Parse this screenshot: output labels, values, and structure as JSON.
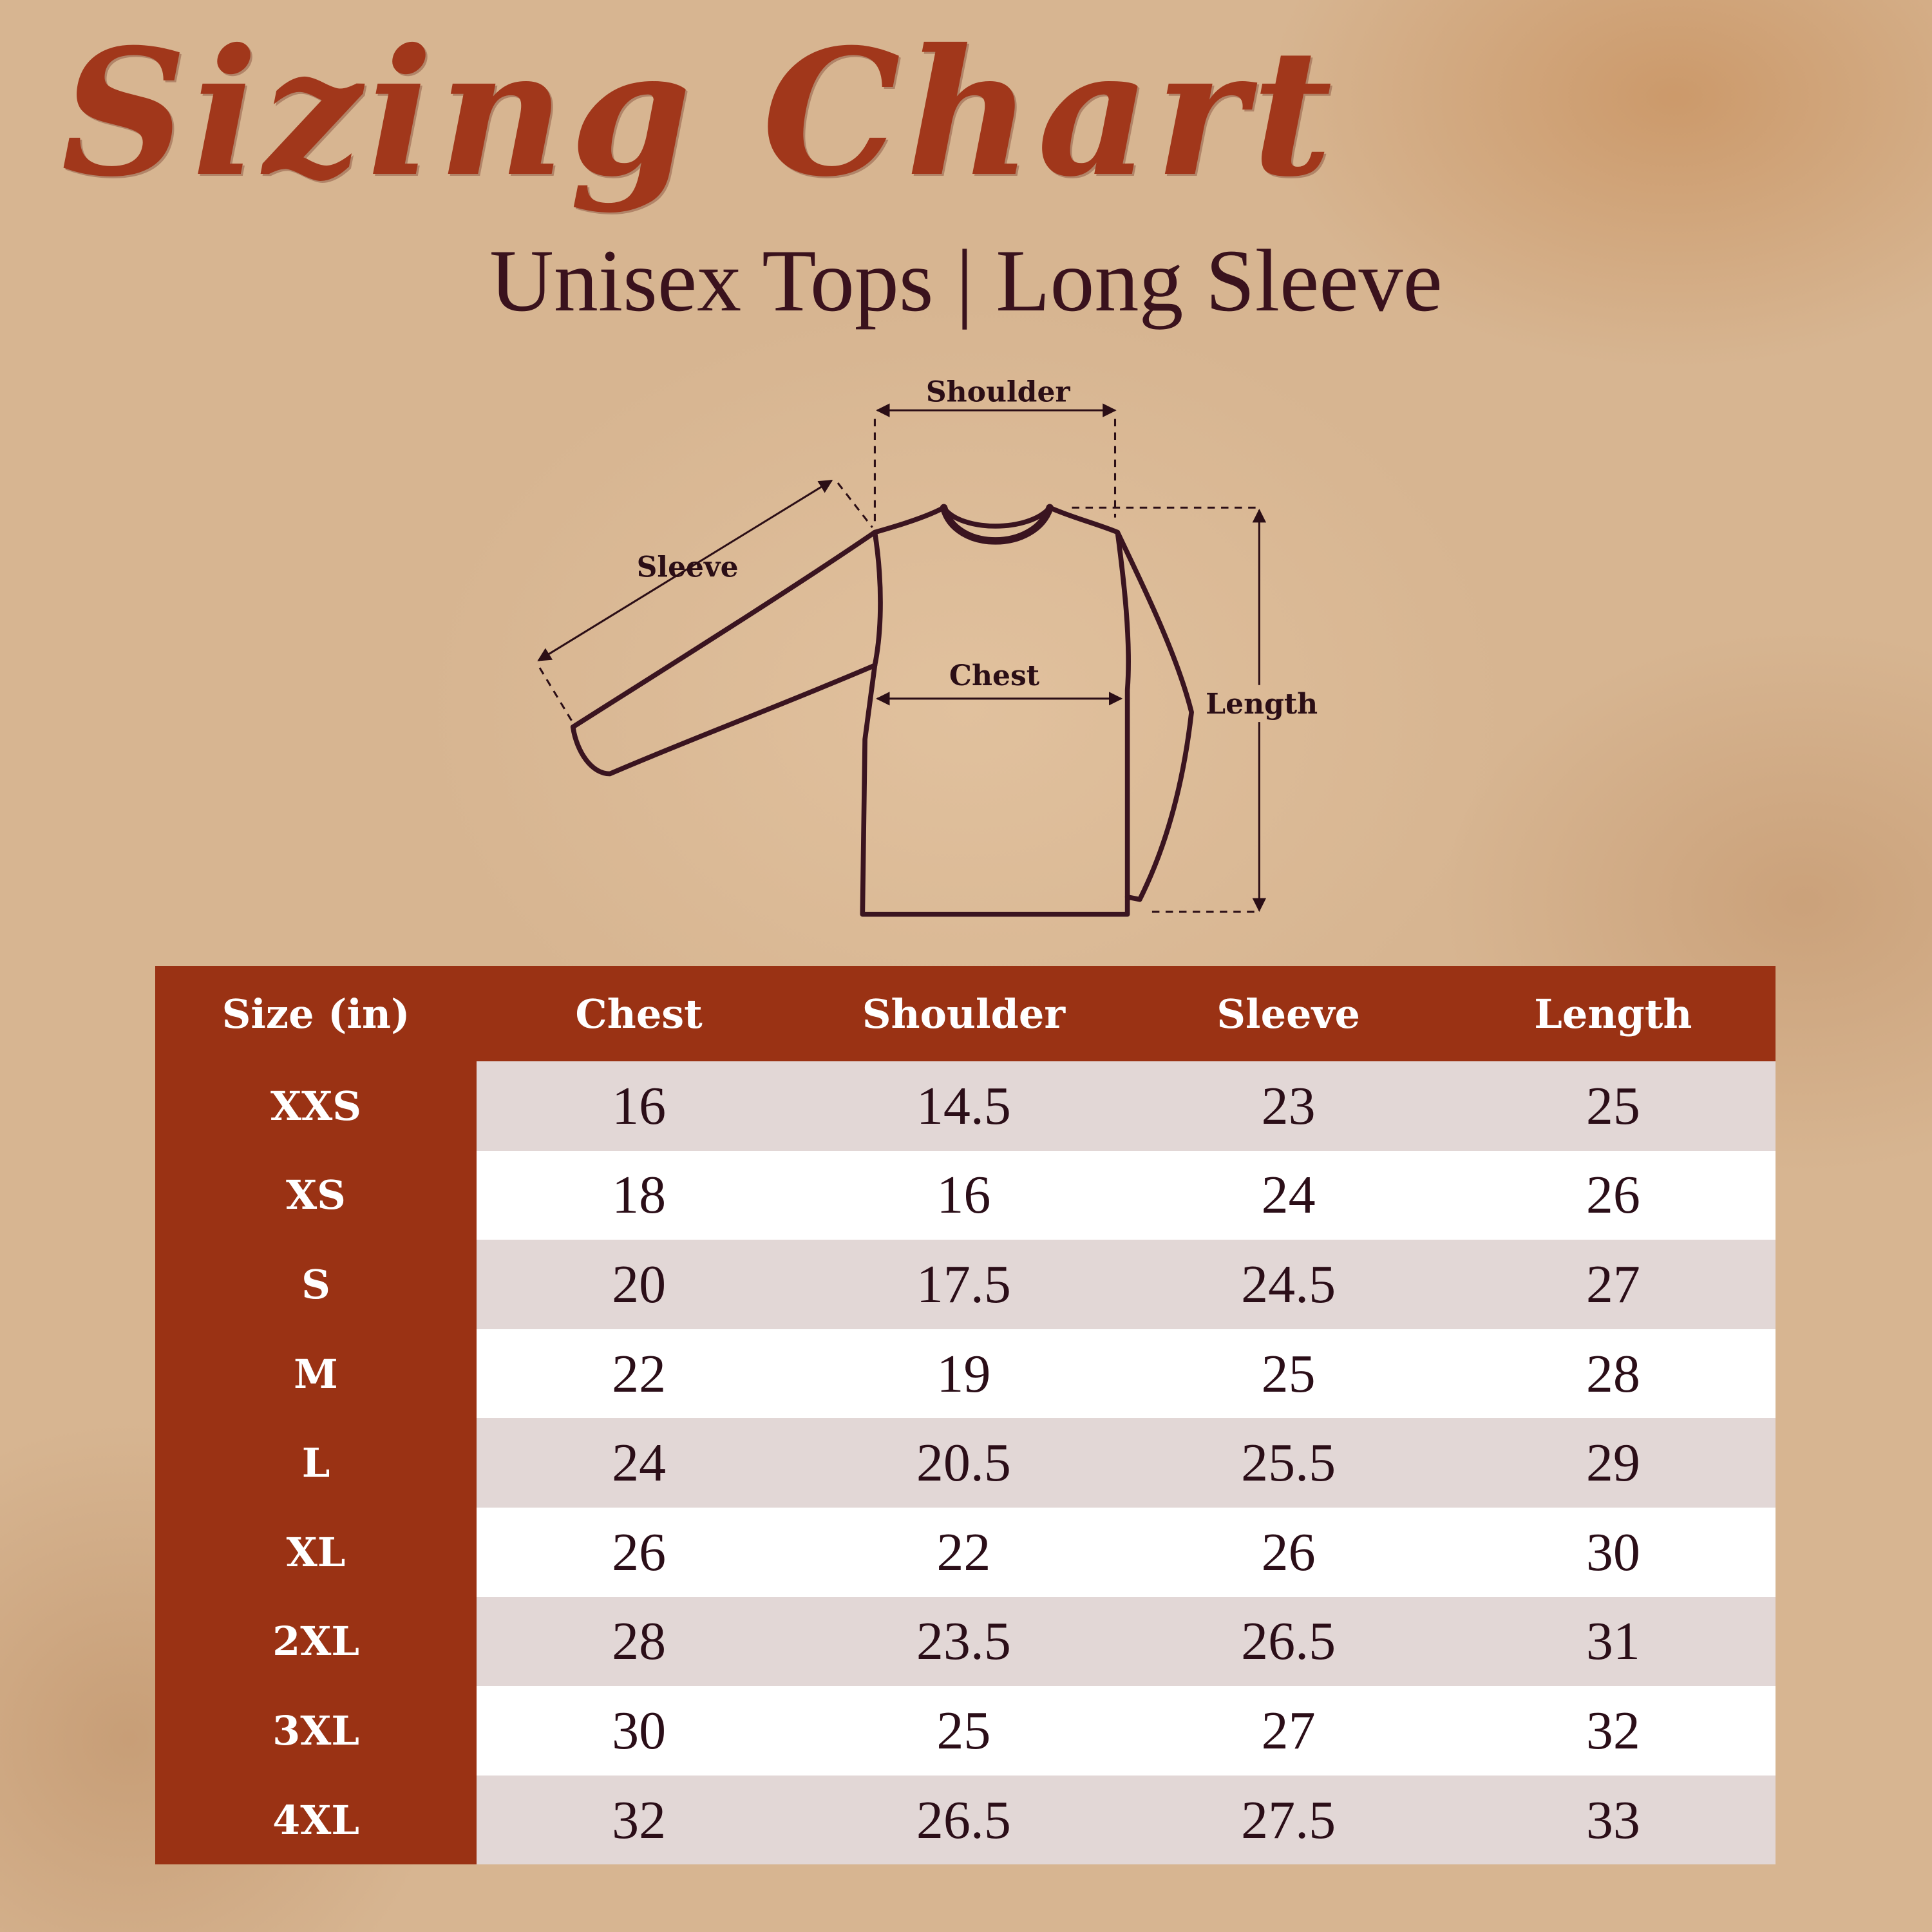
{
  "title": "Sizing Chart",
  "subtitle": "Unisex Tops | Long Sleeve",
  "diagram": {
    "labels": {
      "shoulder": "Shoulder",
      "sleeve": "Sleeve",
      "chest": "Chest",
      "length": "Length"
    },
    "icon": "long-sleeve-shirt"
  },
  "colors": {
    "accent": "#9a3214",
    "text": "#2b0e18",
    "background": "#d7b591",
    "stripe": "#e2d7d6"
  },
  "chart_data": {
    "type": "table",
    "columns": [
      "Size (in)",
      "Chest",
      "Shoulder",
      "Sleeve",
      "Length"
    ],
    "rows": [
      [
        "XXS",
        "16",
        "14.5",
        "23",
        "25"
      ],
      [
        "XS",
        "18",
        "16",
        "24",
        "26"
      ],
      [
        "S",
        "20",
        "17.5",
        "24.5",
        "27"
      ],
      [
        "M",
        "22",
        "19",
        "25",
        "28"
      ],
      [
        "L",
        "24",
        "20.5",
        "25.5",
        "29"
      ],
      [
        "XL",
        "26",
        "22",
        "26",
        "30"
      ],
      [
        "2XL",
        "28",
        "23.5",
        "26.5",
        "31"
      ],
      [
        "3XL",
        "30",
        "25",
        "27",
        "32"
      ],
      [
        "4XL",
        "32",
        "26.5",
        "27.5",
        "33"
      ]
    ]
  }
}
